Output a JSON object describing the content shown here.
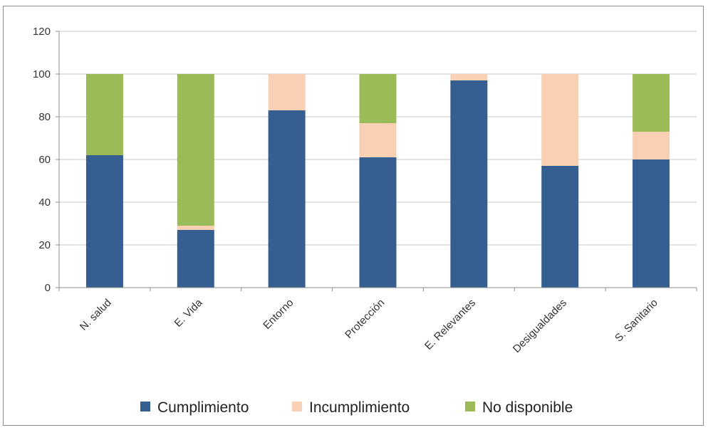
{
  "chart_data": {
    "type": "bar",
    "stacked": true,
    "categories": [
      "N. salud",
      "E. Vida",
      "Entorno",
      "Protección",
      "E. Relevantes",
      "Desigualdades",
      "S. Sanitario"
    ],
    "series": [
      {
        "name": "Cumplimiento",
        "color": "#355F91",
        "values": [
          62,
          27,
          83,
          61,
          97,
          57,
          60
        ]
      },
      {
        "name": "Incumplimiento",
        "color": "#FAD0B5",
        "values": [
          0,
          2,
          17,
          16,
          3,
          43,
          13
        ]
      },
      {
        "name": "No disponible",
        "color": "#9BBB59",
        "values": [
          38,
          71,
          0,
          23,
          0,
          0,
          27
        ]
      }
    ],
    "yticks": [
      0,
      20,
      40,
      60,
      80,
      100,
      120
    ],
    "ylim": [
      0,
      120
    ],
    "grid": true,
    "legend_position": "bottom"
  }
}
